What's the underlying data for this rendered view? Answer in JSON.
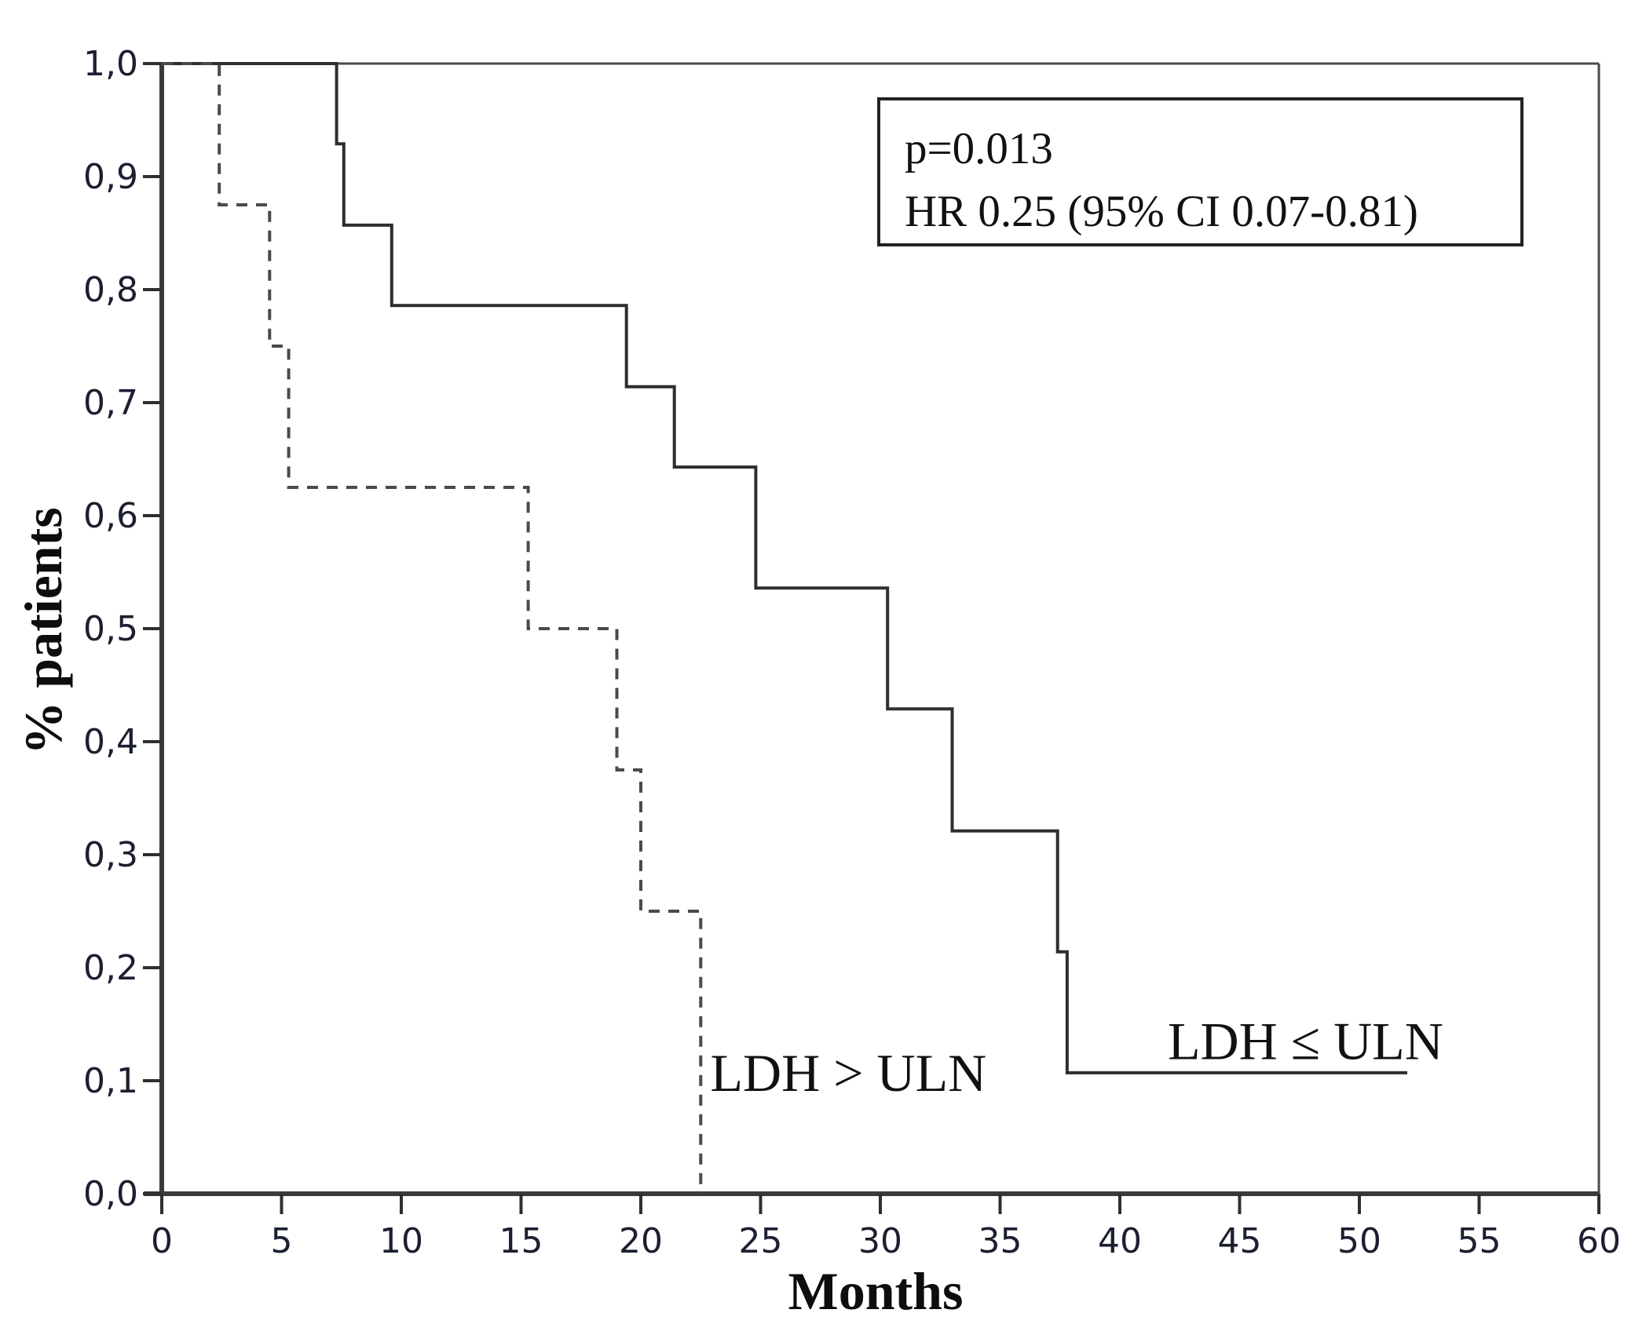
{
  "chart_data": {
    "type": "line",
    "subtype": "kaplan-meier-step",
    "title": "",
    "xlabel": "Months",
    "ylabel": "% patients",
    "xlim": [
      0,
      60
    ],
    "ylim": [
      0.0,
      1.0
    ],
    "grid": false,
    "legend_position": "inline-labels",
    "decimal_separator": ",",
    "x_ticks": [
      0,
      5,
      10,
      15,
      20,
      25,
      30,
      35,
      40,
      45,
      50,
      55,
      60
    ],
    "y_ticks": [
      {
        "value": 0.0,
        "label": "0,0"
      },
      {
        "value": 0.1,
        "label": "0,1"
      },
      {
        "value": 0.2,
        "label": "0,2"
      },
      {
        "value": 0.3,
        "label": "0,3"
      },
      {
        "value": 0.4,
        "label": "0,4"
      },
      {
        "value": 0.5,
        "label": "0,5"
      },
      {
        "value": 0.6,
        "label": "0,6"
      },
      {
        "value": 0.7,
        "label": "0,7"
      },
      {
        "value": 0.8,
        "label": "0,8"
      },
      {
        "value": 0.9,
        "label": "0,9"
      },
      {
        "value": 1.0,
        "label": "1,0"
      }
    ],
    "series": [
      {
        "name": "LDH ≤ ULN",
        "line_style": "solid",
        "color": "#2e2e2e",
        "stroke_width": 4,
        "points": [
          [
            0,
            1.0
          ],
          [
            7.3,
            1.0
          ],
          [
            7.3,
            0.929
          ],
          [
            7.6,
            0.929
          ],
          [
            7.6,
            0.857
          ],
          [
            9.6,
            0.857
          ],
          [
            9.6,
            0.786
          ],
          [
            19.4,
            0.786
          ],
          [
            19.4,
            0.714
          ],
          [
            21.4,
            0.714
          ],
          [
            21.4,
            0.643
          ],
          [
            24.8,
            0.643
          ],
          [
            24.8,
            0.536
          ],
          [
            30.3,
            0.536
          ],
          [
            30.3,
            0.429
          ],
          [
            33.0,
            0.429
          ],
          [
            33.0,
            0.321
          ],
          [
            37.4,
            0.321
          ],
          [
            37.4,
            0.214
          ],
          [
            37.8,
            0.214
          ],
          [
            37.8,
            0.107
          ],
          [
            52.0,
            0.107
          ]
        ]
      },
      {
        "name": "LDH > ULN",
        "line_style": "dashed",
        "color": "#4a4a4a",
        "stroke_width": 4,
        "dash_pattern": [
          14,
          11
        ],
        "points": [
          [
            0,
            1.0
          ],
          [
            2.4,
            1.0
          ],
          [
            2.4,
            0.875
          ],
          [
            4.5,
            0.875
          ],
          [
            4.5,
            0.75
          ],
          [
            5.3,
            0.75
          ],
          [
            5.3,
            0.625
          ],
          [
            15.3,
            0.625
          ],
          [
            15.3,
            0.5
          ],
          [
            19.0,
            0.5
          ],
          [
            19.0,
            0.375
          ],
          [
            20.0,
            0.375
          ],
          [
            20.0,
            0.25
          ],
          [
            22.5,
            0.25
          ],
          [
            22.5,
            0.0
          ]
        ]
      }
    ],
    "curve_labels": [
      {
        "text": "LDH > ULN",
        "x": 22.9,
        "y": 0.091
      },
      {
        "text": "LDH ≤ ULN",
        "x": 42.0,
        "y": 0.119
      }
    ],
    "annotation": {
      "line1": "p=0.013",
      "line2": "HR 0.25 (95% CI 0.07-0.81)"
    },
    "colors": {
      "axis": "#3a3a3a",
      "frame": "#4a4a4a",
      "tick": "#2f2f2f",
      "background": "#ffffff"
    }
  }
}
